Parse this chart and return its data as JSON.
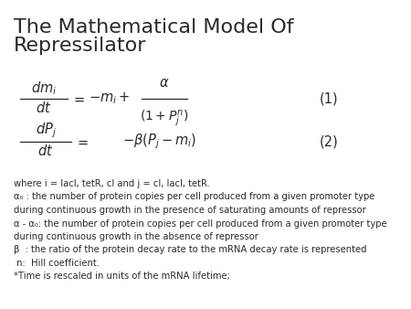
{
  "title_line1": "The Mathematical Model Of",
  "title_line2": "Repressilator",
  "title_fontsize": 16,
  "background_color": "#ffffff",
  "text_color": "#2a2a2a",
  "math_color": "#2a2a2a",
  "eq1_label": "(1)",
  "eq2_label": "(2)",
  "description_lines": [
    "where i = lacI, tetR, cI and j = cI, lacI, tetR.",
    "α₀ : the number of protein copies per cell produced from a given promoter type",
    "during continuous growth in the presence of saturating amounts of repressor",
    "α - α₀: the number of protein copies per cell produced from a given promoter type",
    "during continuous growth in the absence of repressor",
    "β  : the ratio of the protein decay rate to the mRNA decay rate is represented",
    " n:  Hill coefficient.",
    "*Time is rescaled in units of the mRNA lifetime;"
  ],
  "desc_fontsize": 7.2
}
